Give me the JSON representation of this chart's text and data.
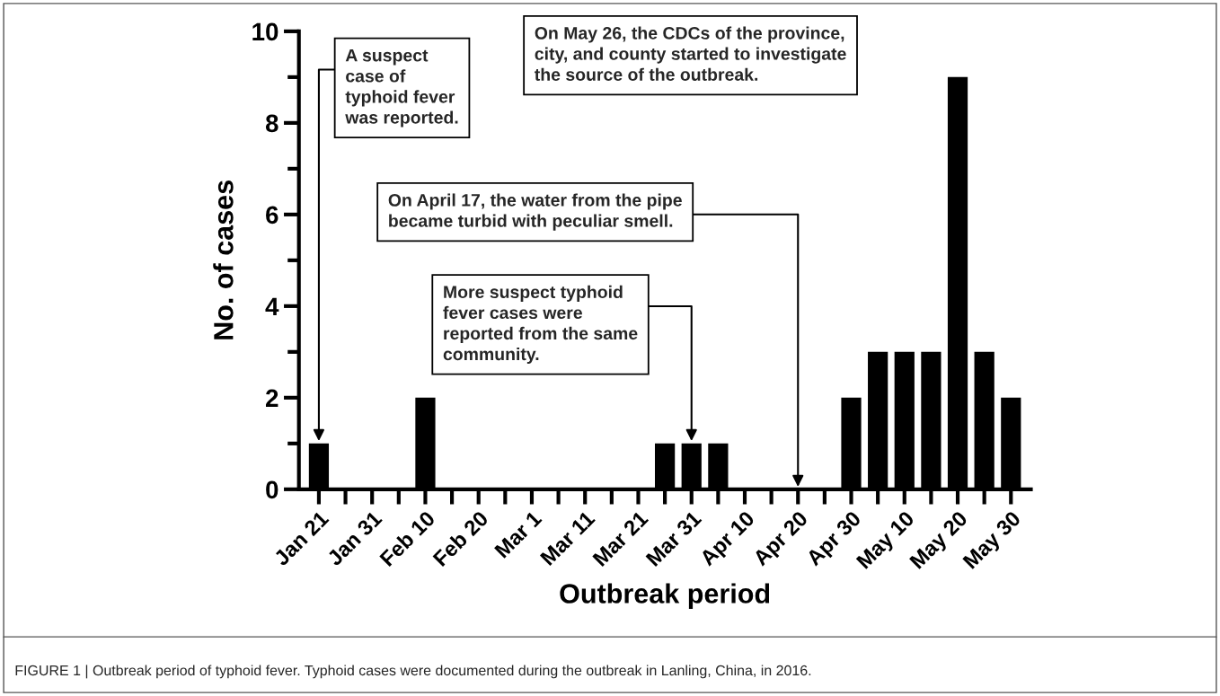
{
  "chart_data": {
    "type": "bar",
    "xlabel": "Outbreak period",
    "ylabel": "No. of cases",
    "categories": [
      "Jan 21",
      null,
      "Jan 31",
      null,
      "Feb 10",
      null,
      "Feb 20",
      null,
      "Mar 1",
      null,
      "Mar 11",
      null,
      "Mar 21",
      null,
      "Mar 31",
      null,
      "Apr 10",
      null,
      "Apr 20",
      null,
      "Apr 30",
      null,
      "May 10",
      null,
      "May 20",
      null,
      "May 30"
    ],
    "values": [
      1,
      0,
      0,
      0,
      2,
      0,
      0,
      0,
      0,
      0,
      0,
      0,
      0,
      1,
      1,
      1,
      0,
      0,
      0,
      0,
      2,
      3,
      3,
      3,
      9,
      3,
      2
    ],
    "color": "#000000",
    "ylim": [
      0,
      10
    ],
    "yticks": [
      0,
      {
        "value": 1,
        "label": null
      },
      2,
      {
        "value": 3,
        "label": null
      },
      4,
      {
        "value": 5,
        "label": null
      },
      6,
      {
        "value": 7,
        "label": null
      },
      8,
      {
        "value": 9,
        "label": null
      },
      10
    ],
    "grid": false,
    "legend": false,
    "annotations": [
      {
        "text": "A suspect\ncase of\ntyphoid fever\nwas reported.",
        "x": "Jan 21",
        "y": 1
      },
      {
        "text": "On May 26, the CDCs of the province,\ncity, and county started to investigate\nthe source of the outbreak."
      },
      {
        "text": "On April 17, the water from the pipe\nbecame turbid with peculiar smell.",
        "x": "Apr 20",
        "y": 0
      },
      {
        "text": "More suspect typhoid\nfever cases were\nreported from the same\ncommunity.",
        "x": "Mar 31",
        "y": 1
      },
      "FIGURE 1 | Outbreak period of typhoid fever. Typhoid cases were documented during the outbreak in Lanling, China, in 2016."
    ]
  }
}
